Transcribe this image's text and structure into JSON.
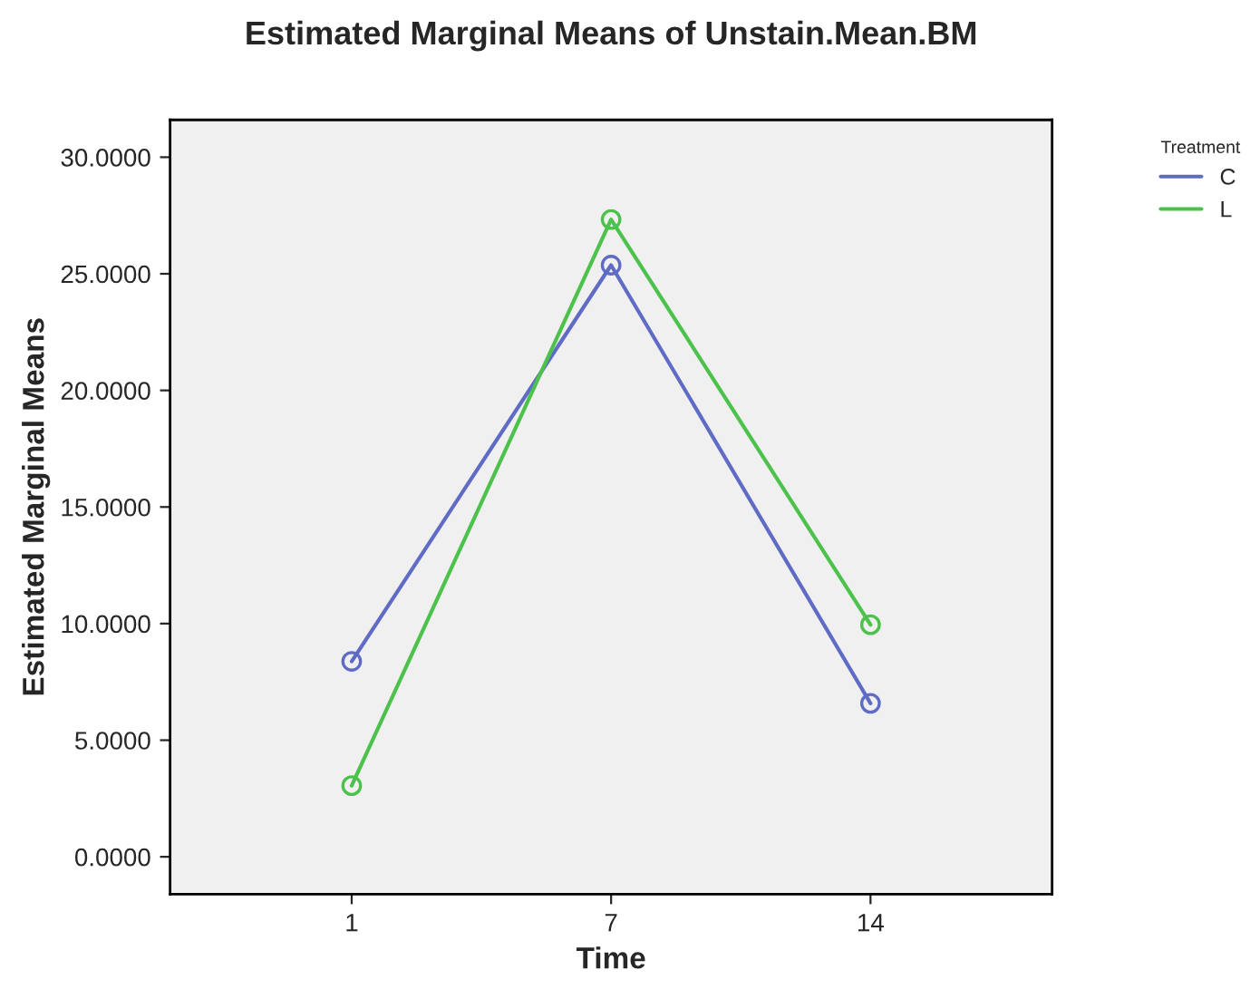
{
  "chart_data": {
    "type": "line",
    "title": "Estimated Marginal Means of Unstain.Mean.BM",
    "xlabel": "Time",
    "ylabel": "Estimated Marginal Means",
    "legend_title": "Treatment",
    "categories": [
      "1",
      "7",
      "14"
    ],
    "series": [
      {
        "name": "C",
        "color": "#5f6bc4",
        "values": [
          8.38,
          25.37,
          6.58
        ]
      },
      {
        "name": "L",
        "color": "#4cc24c",
        "values": [
          3.05,
          27.33,
          9.95
        ]
      }
    ],
    "ylim": [
      -1.6,
      31.6
    ],
    "yticks": [
      {
        "value": 0,
        "label": "0.0000"
      },
      {
        "value": 5,
        "label": "5.0000"
      },
      {
        "value": 10,
        "label": "10.0000"
      },
      {
        "value": 15,
        "label": "15.0000"
      },
      {
        "value": 20,
        "label": "20.0000"
      },
      {
        "value": 25,
        "label": "25.0000"
      },
      {
        "value": 30,
        "label": "30.0000"
      }
    ],
    "marker": "circle",
    "line_style": "solid",
    "legend": "top right",
    "grid": false
  }
}
